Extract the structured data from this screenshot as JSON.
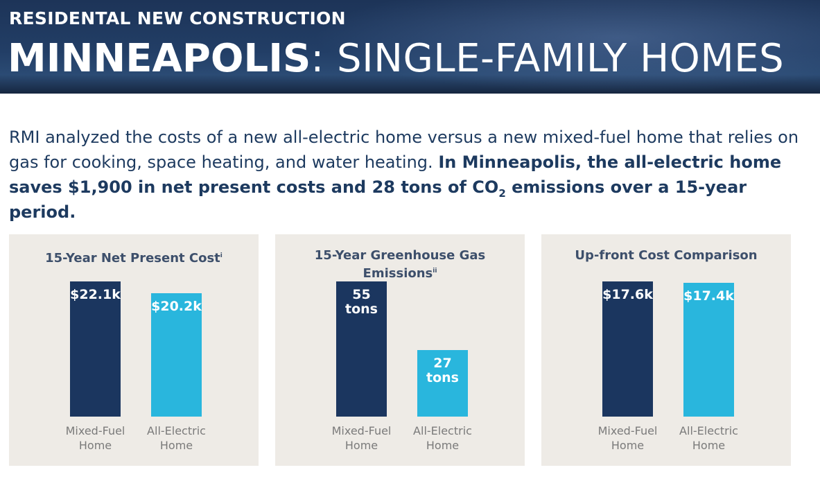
{
  "header": {
    "kicker": "RESIDENTAL NEW CONSTRUCTION",
    "city": "MINNEAPOLIS",
    "subject": ": SINGLE-FAMILY HOMES"
  },
  "intro": {
    "text": "RMI analyzed the costs of a new all-electric home versus a new mixed-fuel home that relies on gas for cooking, space heating, and water heating.",
    "highlight": "In Minneapolis, the all-electric home saves $1,900 in net present costs and 28 tons of CO",
    "subscript": "2",
    "highlight_end": "emissions over a 15-year period."
  },
  "chart_data": [
    {
      "type": "bar",
      "title": "15-Year Net Present Cost",
      "title_note": "i",
      "categories": [
        "Mixed-Fuel Home",
        "All-Electric Home"
      ],
      "values": [
        22100,
        20200
      ],
      "value_labels": [
        "$22.1k",
        "$20.2k"
      ],
      "colors": [
        "#1b365f",
        "#29b6dd"
      ]
    },
    {
      "type": "bar",
      "title": "15-Year Greenhouse Gas Emissions",
      "title_note": "ii",
      "categories": [
        "Mixed-Fuel Home",
        "All-Electric Home"
      ],
      "values": [
        55,
        27
      ],
      "value_labels": [
        "55 tons",
        "27 tons"
      ],
      "colors": [
        "#1b365f",
        "#29b6dd"
      ]
    },
    {
      "type": "bar",
      "title": "Up-front Cost Comparison",
      "categories": [
        "Mixed-Fuel Home",
        "All-Electric Home"
      ],
      "values": [
        17600,
        17400
      ],
      "value_labels": [
        "$17.6k",
        "$17.4k"
      ],
      "colors": [
        "#1b365f",
        "#29b6dd"
      ]
    }
  ]
}
